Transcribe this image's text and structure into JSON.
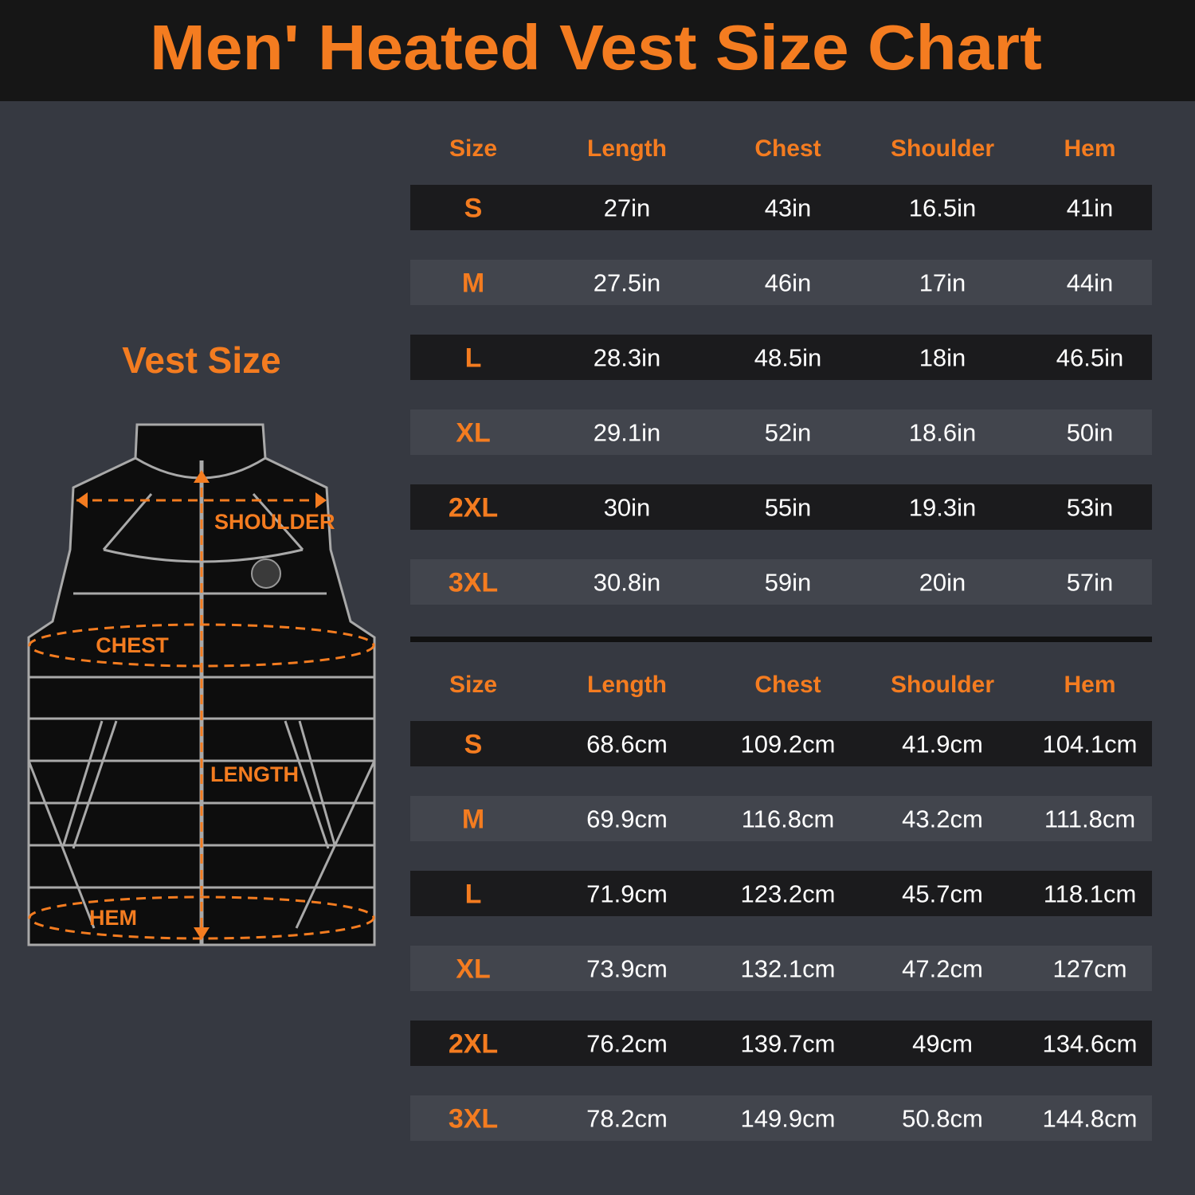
{
  "header": {
    "title": "Men' Heated Vest Size Chart"
  },
  "diagram": {
    "title": "Vest Size",
    "labels": {
      "shoulder": "SHOULDER",
      "chest": "CHEST",
      "length": "LENGTH",
      "hem": "HEM"
    }
  },
  "tables": [
    {
      "columns": [
        "Size",
        "Length",
        "Chest",
        "Shoulder",
        "Hem"
      ],
      "rows": [
        [
          "S",
          "27in",
          "43in",
          "16.5in",
          "41in"
        ],
        [
          "M",
          "27.5in",
          "46in",
          "17in",
          "44in"
        ],
        [
          "L",
          "28.3in",
          "48.5in",
          "18in",
          "46.5in"
        ],
        [
          "XL",
          "29.1in",
          "52in",
          "18.6in",
          "50in"
        ],
        [
          "2XL",
          "30in",
          "55in",
          "19.3in",
          "53in"
        ],
        [
          "3XL",
          "30.8in",
          "59in",
          "20in",
          "57in"
        ]
      ]
    },
    {
      "columns": [
        "Size",
        "Length",
        "Chest",
        "Shoulder",
        "Hem"
      ],
      "rows": [
        [
          "S",
          "68.6cm",
          "109.2cm",
          "41.9cm",
          "104.1cm"
        ],
        [
          "M",
          "69.9cm",
          "116.8cm",
          "43.2cm",
          "111.8cm"
        ],
        [
          "L",
          "71.9cm",
          "123.2cm",
          "45.7cm",
          "118.1cm"
        ],
        [
          "XL",
          "73.9cm",
          "132.1cm",
          "47.2cm",
          "127cm"
        ],
        [
          "2XL",
          "76.2cm",
          "139.7cm",
          "49cm",
          "134.6cm"
        ],
        [
          "3XL",
          "78.2cm",
          "149.9cm",
          "50.8cm",
          "144.8cm"
        ]
      ]
    }
  ]
}
